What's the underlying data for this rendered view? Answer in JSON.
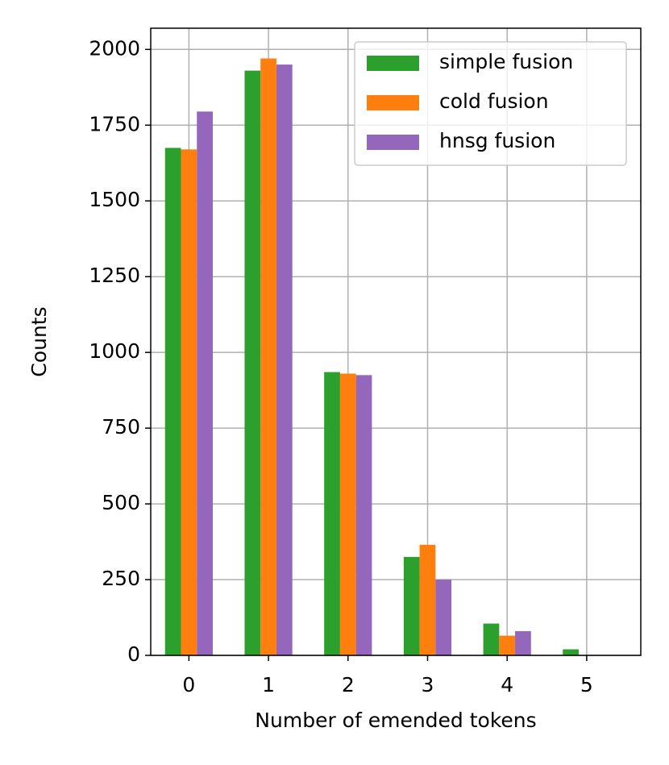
{
  "chart_data": {
    "type": "bar",
    "x_label": "Number of emended tokens",
    "y_label": "Counts",
    "x": [
      0,
      1,
      2,
      3,
      4,
      5
    ],
    "series": [
      {
        "name": "simple fusion",
        "color": "#2ca02c",
        "values": [
          1675,
          1930,
          935,
          325,
          105,
          20
        ]
      },
      {
        "name": "cold fusion",
        "color": "#ff7f0e",
        "values": [
          1670,
          1970,
          930,
          365,
          65,
          0
        ]
      },
      {
        "name": "hnsg fusion",
        "color": "#9467bd",
        "values": [
          1795,
          1950,
          925,
          250,
          80,
          0
        ]
      }
    ],
    "xlim": [
      -0.48,
      5.68
    ],
    "xticks": [
      0,
      1,
      2,
      3,
      4,
      5
    ],
    "ylim": [
      0,
      2070
    ],
    "yticks": [
      0,
      250,
      500,
      750,
      1000,
      1250,
      1500,
      1750,
      2000
    ],
    "grid": true,
    "legend": "upper right"
  }
}
